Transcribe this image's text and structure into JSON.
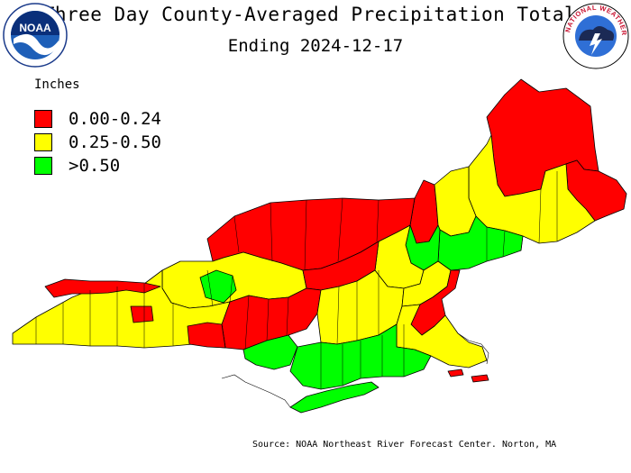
{
  "header": {
    "title": "Three Day County-Averaged Precipitation Totals",
    "subtitle": "Ending 2024-12-17"
  },
  "logos": {
    "noaa_text": "NOAA",
    "nws_text": "NATIONAL WEATHER SERVICE"
  },
  "legend": {
    "title": "Inches",
    "items": [
      {
        "label": "0.00-0.24",
        "color": "#ff0000"
      },
      {
        "label": "0.25-0.50",
        "color": "#ffff00"
      },
      {
        "label": ">0.50",
        "color": "#00ff00"
      }
    ]
  },
  "footer": {
    "source": "Source: NOAA Northeast River Forecast Center. Norton, MA"
  },
  "colors": {
    "red": "#ff0000",
    "yellow": "#ffff00",
    "green": "#00ff00",
    "outline": "#000000"
  }
}
